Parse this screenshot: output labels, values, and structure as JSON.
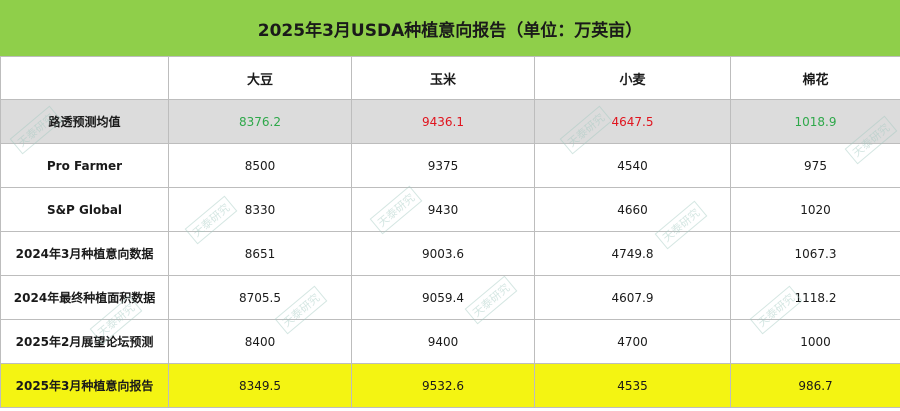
{
  "title": "2025年3月USDA种植意向报告（单位：万英亩）",
  "headers": [
    "",
    "大豆",
    "玉米",
    "小麦",
    "棉花"
  ],
  "rows": [
    {
      "label": "路透预测均值",
      "values": [
        "8376.2",
        "9436.1",
        "4647.5",
        "1018.9"
      ],
      "colors": [
        "green",
        "red",
        "red",
        "green"
      ]
    },
    {
      "label": "Pro Farmer",
      "values": [
        "8500",
        "9375",
        "4540",
        "975"
      ]
    },
    {
      "label": "S&P Global",
      "values": [
        "8330",
        "9430",
        "4660",
        "1020"
      ]
    },
    {
      "label": "2024年3月种植意向数据",
      "values": [
        "8651",
        "9003.6",
        "4749.8",
        "1067.3"
      ]
    },
    {
      "label": "2024年最终种植面积数据",
      "values": [
        "8705.5",
        "9059.4",
        "4607.9",
        "1118.2"
      ]
    },
    {
      "label": "2025年2月展望论坛预测",
      "values": [
        "8400",
        "9400",
        "4700",
        "1000"
      ]
    },
    {
      "label": "2025年3月种植意向报告",
      "values": [
        "8349.5",
        "9532.6",
        "4535",
        "986.7"
      ]
    }
  ],
  "watermark_text": "天泰研究",
  "colors": {
    "title_bg": "#8fcf4a",
    "consensus_bg": "#dcdcdc",
    "highlight_bg": "#f4f412",
    "green": "#2ea84a",
    "red": "#e0141e"
  }
}
